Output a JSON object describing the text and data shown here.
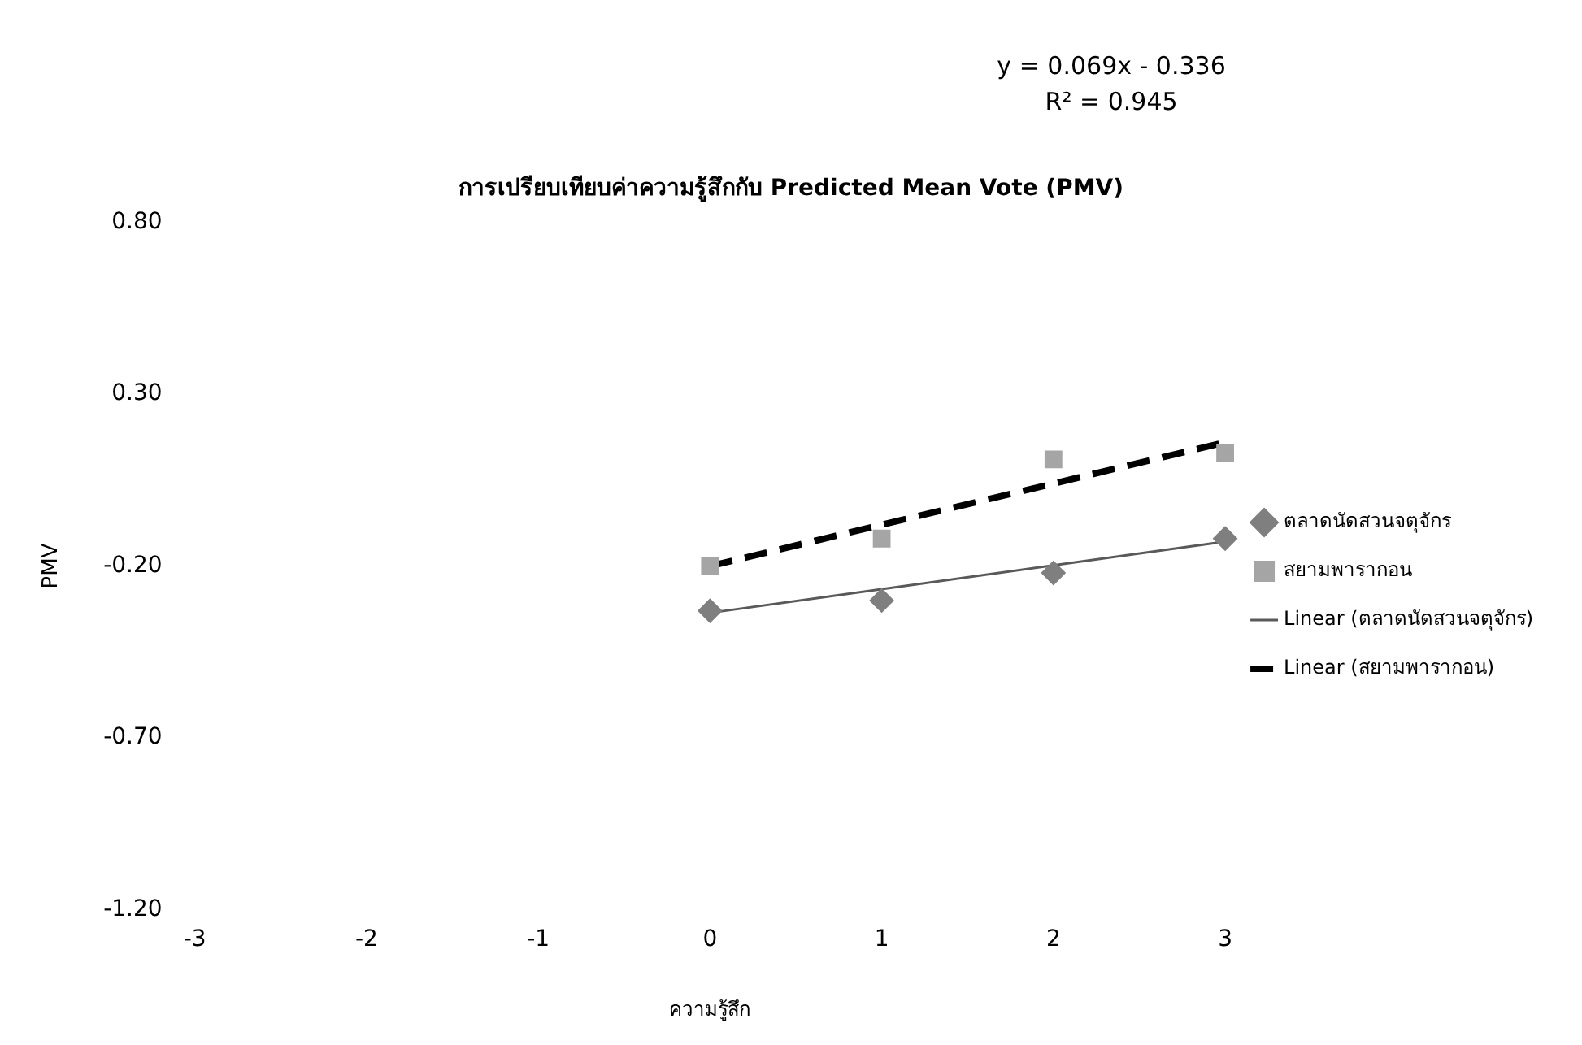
{
  "chart_data": {
    "type": "scatter",
    "title": "การเปรียบเทียบค่าความรู้สึกกับ Predicted Mean Vote (PMV)",
    "xlabel": "ความรู้สึก",
    "ylabel": "PMV",
    "annotations": [
      "y = 0.069x - 0.336",
      "R² = 0.945"
    ],
    "xlim": [
      -3,
      3
    ],
    "xticks": [
      -3,
      -2,
      -1,
      0,
      1,
      2,
      3
    ],
    "ylim": [
      -1.2,
      0.8
    ],
    "yticks": [
      {
        "value": 0.8,
        "label": "0.80"
      },
      {
        "value": 0.3,
        "label": "0.30"
      },
      {
        "value": -0.2,
        "label": "-0.20"
      },
      {
        "value": -0.7,
        "label": "-0.70"
      },
      {
        "value": -1.2,
        "label": "-1.20"
      }
    ],
    "grid": false,
    "legend": "right",
    "series": [
      {
        "name": "ตลาดนัดสวนจตุจักร",
        "marker": "diamond",
        "color": "#7f7f7f",
        "x": [
          0,
          1,
          2,
          3
        ],
        "values": [
          -0.33,
          -0.3,
          -0.22,
          -0.12
        ]
      },
      {
        "name": "สยามพารากอน",
        "marker": "square",
        "color": "#a5a5a5",
        "x": [
          0,
          1,
          2,
          3
        ],
        "values": [
          -0.2,
          -0.12,
          0.11,
          0.13
        ]
      },
      {
        "name": "Linear (ตลาดนัดสวนจตุจักร)",
        "type": "line",
        "marker": "none",
        "line_style": "solid",
        "color": "#595959",
        "x": [
          0,
          3
        ],
        "values": [
          -0.336,
          -0.129
        ]
      },
      {
        "name": "Linear (สยามพารากอน)",
        "type": "line",
        "marker": "none",
        "line_style": "dashed",
        "color": "#000000",
        "x": [
          0,
          3
        ],
        "values": [
          -0.2,
          0.16
        ]
      }
    ]
  }
}
